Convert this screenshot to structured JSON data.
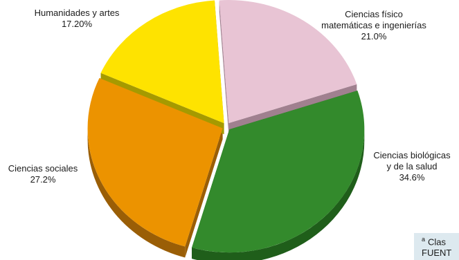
{
  "chart_data": {
    "type": "pie",
    "style": "3d-exploded",
    "slices": [
      {
        "name": "Ciencias físico matemáticas e ingenierías",
        "value": 21.0,
        "label_lines": [
          "Ciencias físico",
          "matemáticas e ingenierías",
          "21.0%"
        ],
        "color": "#e8c4d4",
        "side_color": "#a0808f"
      },
      {
        "name": "Ciencias biológicas y de la salud",
        "value": 34.6,
        "label_lines": [
          "Ciencias biológicas",
          "y de la salud",
          "34.6%"
        ],
        "color": "#338a2c",
        "side_color": "#1f5e1a"
      },
      {
        "name": "Ciencias sociales",
        "value": 27.2,
        "label_lines": [
          "Ciencias sociales",
          "27.2%"
        ],
        "color": "#ec9300",
        "side_color": "#9a5e06"
      },
      {
        "name": "Humanidades y artes",
        "value": 17.2,
        "label_lines": [
          "Humanidades y artes",
          "17.20%"
        ],
        "color": "#fee300",
        "side_color": "#a59a00"
      }
    ]
  },
  "note": {
    "line1_marker": "a",
    "line1_text": "Clas",
    "line2_text": "FUENT"
  }
}
